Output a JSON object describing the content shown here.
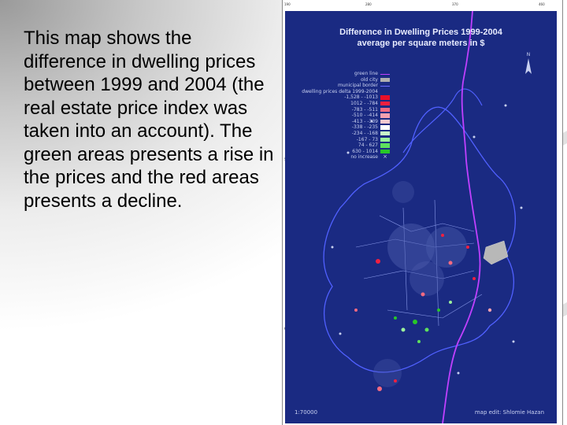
{
  "slide": {
    "description": "This map shows the difference in dwelling prices between 1999 and 2004 (the real estate price index was taken into an account). The green areas presents a rise in the prices and the red areas presents a decline."
  },
  "map": {
    "title_line1": "Difference in Dwelling Prices 1999-2004",
    "title_line2": "average per square meters in $",
    "scale": "1:70000",
    "author": "map edit: Shlomie Hazan",
    "north_arrow_icon": "north-arrow-icon",
    "frame_ticks": [
      "190",
      "280",
      "370",
      "460",
      "550",
      "640"
    ],
    "legend": [
      {
        "label": "green line",
        "symbol": "line",
        "color": "#c040ff"
      },
      {
        "label": "old city",
        "symbol": "fill",
        "color": "#b0b0b0"
      },
      {
        "label": "municipal border",
        "symbol": "line",
        "color": "#6a6aff"
      },
      {
        "label": "dwelling prices delta 1999-2004",
        "symbol": "none",
        "color": ""
      },
      {
        "label": "-1,528 - -1013",
        "symbol": "fill",
        "color": "#e8102a"
      },
      {
        "label": "1012 - -784",
        "symbol": "fill",
        "color": "#f02040"
      },
      {
        "label": "-783 - -511",
        "symbol": "fill",
        "color": "#f26a82"
      },
      {
        "label": "-510 - -414",
        "symbol": "fill",
        "color": "#f5a0b0"
      },
      {
        "label": "-413 - -339",
        "symbol": "fill",
        "color": "#f7c8d0"
      },
      {
        "label": "-338 - -235",
        "symbol": "fill",
        "color": "#ffffff"
      },
      {
        "label": "-234 - -168",
        "symbol": "fill",
        "color": "#c8f5c8"
      },
      {
        "label": "-167 - 73",
        "symbol": "fill",
        "color": "#9cf29c"
      },
      {
        "label": "74 - 627",
        "symbol": "fill",
        "color": "#5ee05e"
      },
      {
        "label": "630 - 1014",
        "symbol": "fill",
        "color": "#28c828"
      },
      {
        "label": "no increase",
        "symbol": "cross",
        "color": "#c8d0f0"
      }
    ]
  }
}
